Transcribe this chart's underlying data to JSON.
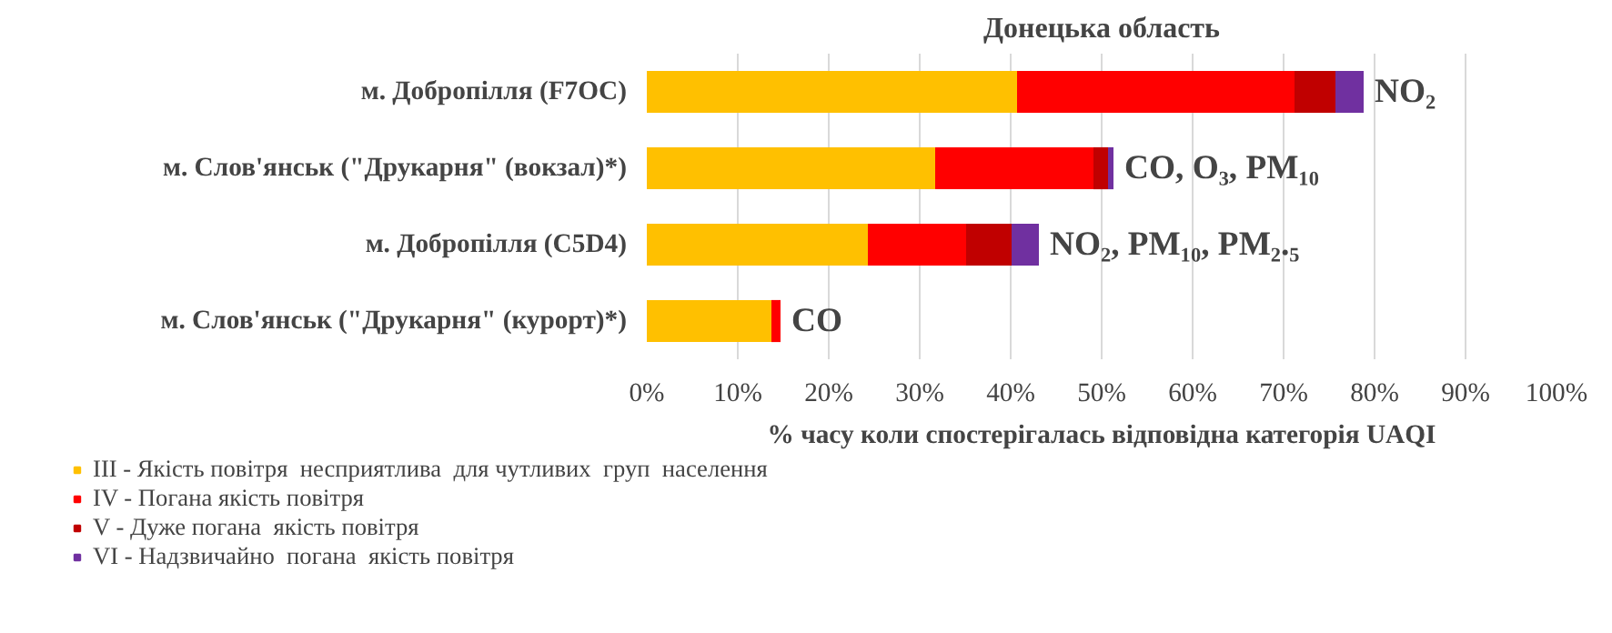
{
  "chart_data": {
    "type": "bar",
    "orientation": "horizontal",
    "stacked": true,
    "title": "Донецька область",
    "xlabel": "% часу коли спостерігалась відповідна категорія UAQI",
    "categories": [
      "м. Добропілля (F7OC)",
      "м. Слов'янськ (\"Друкарня\" (вокзал)*)",
      "м. Добропілля (C5D4)",
      "м. Слов'янськ (\"Друкарня\" (курорт)*)"
    ],
    "series": [
      {
        "name": "III - Якість повітря  несприятлива  для чутливих  груп  населення",
        "color": "#ffc000",
        "values": [
          40.7,
          31.7,
          24.3,
          13.7
        ]
      },
      {
        "name": "IV - Погана якість повітря",
        "color": "#ff0000",
        "values": [
          30.5,
          17.4,
          10.8,
          1.0
        ]
      },
      {
        "name": "V - Дуже погана  якість повітря",
        "color": "#c00000",
        "values": [
          4.5,
          1.6,
          5.0,
          0
        ]
      },
      {
        "name": "VI - Надзвичайно  погана  якість повітря",
        "color": "#7030a0",
        "values": [
          3.1,
          0.6,
          3.0,
          0
        ]
      }
    ],
    "xlim": [
      0,
      100
    ],
    "xticks": [
      {
        "value": 0,
        "label": "0%"
      },
      {
        "value": 10,
        "label": "10%"
      },
      {
        "value": 20,
        "label": "20%"
      },
      {
        "value": 30,
        "label": "30%"
      },
      {
        "value": 40,
        "label": "40%"
      },
      {
        "value": 50,
        "label": "50%"
      },
      {
        "value": 60,
        "label": "60%"
      },
      {
        "value": 70,
        "label": "70%"
      },
      {
        "value": 80,
        "label": "80%"
      },
      {
        "value": 90,
        "label": "90%"
      },
      {
        "value": 100,
        "label": "100%"
      }
    ],
    "annotations": [
      {
        "text": "NO₂",
        "x": 78.8,
        "y": "м. Добропілля (F7OC)"
      },
      {
        "text": "CO, O₃, PM₁₀",
        "x": 51.3,
        "y": "м. Слов'янськ (\"Друкарня\" (вокзал)*)"
      },
      {
        "text": "NO₂, PM₁₀, PM₂.₅",
        "x": 43.1,
        "y": "м. Добропілля (C5D4)"
      },
      {
        "text": "CO",
        "x": 14.7,
        "y": "м. Слов'янськ (\"Друкарня\" (курорт)*)"
      }
    ],
    "grid": "x",
    "legend": "bottom"
  }
}
